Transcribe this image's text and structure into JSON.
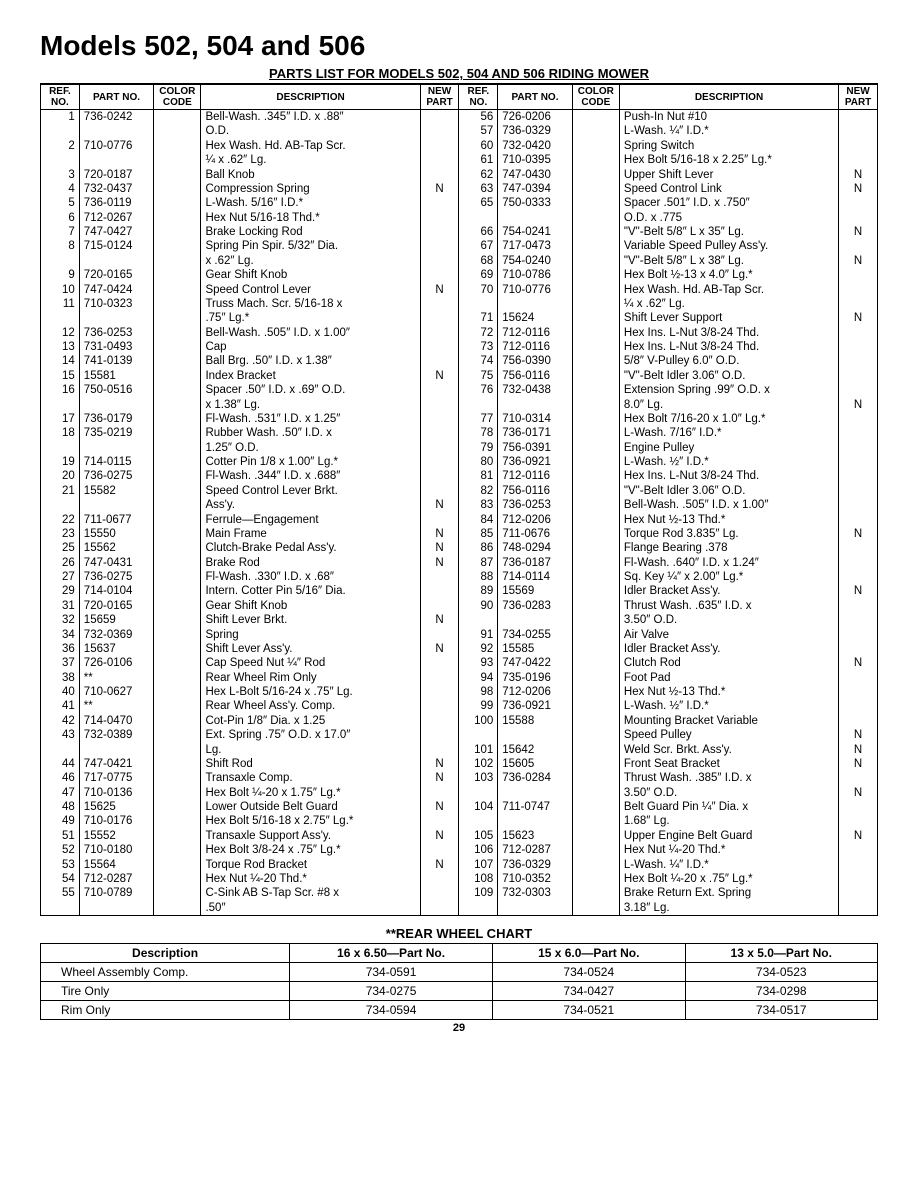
{
  "title": "Models 502, 504 and 506",
  "subtitle": "PARTS LIST FOR MODELS 502, 504 AND 506  RIDING MOWER",
  "headers": {
    "ref": "REF.\nNO.",
    "part": "PART\nNO.",
    "color": "COLOR\nCODE",
    "desc": "DESCRIPTION",
    "new": "NEW\nPART"
  },
  "left": [
    {
      "r": "1",
      "p": "736-0242",
      "d": "Bell-Wash. .345″ I.D. x .88″\nO.D.",
      "n": ""
    },
    {
      "r": "2",
      "p": "710-0776",
      "d": "Hex Wash. Hd. AB-Tap Scr.\n¼ x .62″ Lg.",
      "n": ""
    },
    {
      "r": "3",
      "p": "720-0187",
      "d": "Ball Knob",
      "n": ""
    },
    {
      "r": "4",
      "p": "732-0437",
      "d": "Compression Spring",
      "n": "N"
    },
    {
      "r": "5",
      "p": "736-0119",
      "d": "L-Wash. 5/16″ I.D.*",
      "n": ""
    },
    {
      "r": "6",
      "p": "712-0267",
      "d": "Hex Nut 5/16-18 Thd.*",
      "n": ""
    },
    {
      "r": "7",
      "p": "747-0427",
      "d": "Brake Locking Rod",
      "n": ""
    },
    {
      "r": "8",
      "p": "715-0124",
      "d": "Spring Pin Spir. 5/32″ Dia.\nx .62″ Lg.",
      "n": ""
    },
    {
      "r": "9",
      "p": "720-0165",
      "d": "Gear Shift Knob",
      "n": ""
    },
    {
      "r": "10",
      "p": "747-0424",
      "d": "Speed Control Lever",
      "n": "N"
    },
    {
      "r": "11",
      "p": "710-0323",
      "d": "Truss Mach. Scr. 5/16-18 x\n.75″ Lg.*",
      "n": ""
    },
    {
      "r": "12",
      "p": "736-0253",
      "d": "Bell-Wash. .505″ I.D. x 1.00″",
      "n": ""
    },
    {
      "r": "13",
      "p": "731-0493",
      "d": "Cap",
      "n": ""
    },
    {
      "r": "14",
      "p": "741-0139",
      "d": "Ball Brg. .50″ I.D. x 1.38″",
      "n": ""
    },
    {
      "r": "15",
      "p": "15581",
      "d": "Index Bracket",
      "n": "N"
    },
    {
      "r": "16",
      "p": "750-0516",
      "d": "Spacer .50″ I.D. x .69″ O.D.\nx 1.38″ Lg.",
      "n": ""
    },
    {
      "r": "17",
      "p": "736-0179",
      "d": "Fl-Wash. .531″ I.D. x 1.25″",
      "n": ""
    },
    {
      "r": "18",
      "p": "735-0219",
      "d": "Rubber Wash. .50″ I.D. x\n1.25″ O.D.",
      "n": ""
    },
    {
      "r": "19",
      "p": "714-0115",
      "d": "Cotter Pin 1/8 x 1.00″ Lg.*",
      "n": ""
    },
    {
      "r": "20",
      "p": "736-0275",
      "d": "Fl-Wash. .344″ I.D. x .688″",
      "n": ""
    },
    {
      "r": "21",
      "p": "15582",
      "d": "Speed Control Lever Brkt.\nAss'y.",
      "n": "N"
    },
    {
      "r": "22",
      "p": "711-0677",
      "d": "Ferrule—Engagement",
      "n": ""
    },
    {
      "r": "23",
      "p": "15550",
      "d": "Main Frame",
      "n": "N"
    },
    {
      "r": "25",
      "p": "15562",
      "d": "Clutch-Brake Pedal Ass'y.",
      "n": "N"
    },
    {
      "r": "26",
      "p": "747-0431",
      "d": "Brake Rod",
      "n": "N"
    },
    {
      "r": "27",
      "p": "736-0275",
      "d": "Fl-Wash. .330″ I.D. x .68″",
      "n": ""
    },
    {
      "r": "29",
      "p": "714-0104",
      "d": "Intern. Cotter Pin 5/16″ Dia.",
      "n": ""
    },
    {
      "r": "31",
      "p": "720-0165",
      "d": "Gear Shift Knob",
      "n": ""
    },
    {
      "r": "32",
      "p": "15659",
      "d": "Shift Lever Brkt.",
      "n": "N"
    },
    {
      "r": "34",
      "p": "732-0369",
      "d": "Spring",
      "n": ""
    },
    {
      "r": "36",
      "p": "15637",
      "d": "Shift Lever Ass'y.",
      "n": "N"
    },
    {
      "r": "37",
      "p": "726-0106",
      "d": "Cap Speed Nut ¼″ Rod",
      "n": ""
    },
    {
      "r": "38",
      "p": "**",
      "d": "Rear Wheel Rim Only",
      "n": ""
    },
    {
      "r": "40",
      "p": "710-0627",
      "d": "Hex L-Bolt 5/16-24 x .75″ Lg.",
      "n": ""
    },
    {
      "r": "41",
      "p": "**",
      "d": "Rear Wheel Ass'y. Comp.",
      "n": ""
    },
    {
      "r": "42",
      "p": "714-0470",
      "d": "Cot-Pin 1/8″ Dia. x 1.25",
      "n": ""
    },
    {
      "r": "43",
      "p": "732-0389",
      "d": "Ext. Spring .75″ O.D. x 17.0″\nLg.",
      "n": ""
    },
    {
      "r": "44",
      "p": "747-0421",
      "d": "Shift Rod",
      "n": "N"
    },
    {
      "r": "46",
      "p": "717-0775",
      "d": "Transaxle Comp.",
      "n": "N"
    },
    {
      "r": "47",
      "p": "710-0136",
      "d": "Hex Bolt ¼-20 x 1.75″ Lg.*",
      "n": ""
    },
    {
      "r": "48",
      "p": "15625",
      "d": "Lower Outside Belt Guard",
      "n": "N"
    },
    {
      "r": "49",
      "p": "710-0176",
      "d": "Hex Bolt 5/16-18 x 2.75″ Lg.*",
      "n": ""
    },
    {
      "r": "51",
      "p": "15552",
      "d": "Transaxle Support Ass'y.",
      "n": "N"
    },
    {
      "r": "52",
      "p": "710-0180",
      "d": "Hex Bolt 3/8-24 x .75″ Lg.*",
      "n": ""
    },
    {
      "r": "53",
      "p": "15564",
      "d": "Torque Rod Bracket",
      "n": "N"
    },
    {
      "r": "54",
      "p": "712-0287",
      "d": "Hex Nut ¼-20 Thd.*",
      "n": ""
    },
    {
      "r": "55",
      "p": "710-0789",
      "d": "C-Sink AB S-Tap Scr. #8 x\n.50″",
      "n": ""
    }
  ],
  "right": [
    {
      "r": "56",
      "p": "726-0206",
      "d": "Push-In Nut #10",
      "n": ""
    },
    {
      "r": "57",
      "p": "736-0329",
      "d": "L-Wash. ¼″ I.D.*",
      "n": ""
    },
    {
      "r": "60",
      "p": "732-0420",
      "d": "Spring Switch",
      "n": ""
    },
    {
      "r": "61",
      "p": "710-0395",
      "d": "Hex Bolt 5/16-18 x 2.25″ Lg.*",
      "n": ""
    },
    {
      "r": "62",
      "p": "747-0430",
      "d": "Upper Shift Lever",
      "n": "N"
    },
    {
      "r": "63",
      "p": "747-0394",
      "d": "Speed Control Link",
      "n": "N"
    },
    {
      "r": "65",
      "p": "750-0333",
      "d": "Spacer .501″ I.D. x .750″\nO.D. x .775",
      "n": ""
    },
    {
      "r": "66",
      "p": "754-0241",
      "d": "\"V\"-Belt 5/8″ L x 35″ Lg.",
      "n": "N"
    },
    {
      "r": "67",
      "p": "717-0473",
      "d": "Variable Speed Pulley Ass'y.",
      "n": ""
    },
    {
      "r": "68",
      "p": "754-0240",
      "d": "\"V\"-Belt 5/8″ L x 38″ Lg.",
      "n": "N"
    },
    {
      "r": "69",
      "p": "710-0786",
      "d": "Hex Bolt ½-13 x 4.0″ Lg.*",
      "n": ""
    },
    {
      "r": "70",
      "p": "710-0776",
      "d": "Hex Wash. Hd. AB-Tap Scr.\n¼ x .62″ Lg.",
      "n": ""
    },
    {
      "r": "71",
      "p": "15624",
      "d": "Shift Lever Support",
      "n": "N"
    },
    {
      "r": "72",
      "p": "712-0116",
      "d": "Hex Ins. L-Nut 3/8-24 Thd.",
      "n": ""
    },
    {
      "r": "73",
      "p": "712-0116",
      "d": "Hex Ins. L-Nut 3/8-24 Thd.",
      "n": ""
    },
    {
      "r": "74",
      "p": "756-0390",
      "d": "5/8″ V-Pulley 6.0″ O.D.",
      "n": ""
    },
    {
      "r": "75",
      "p": "756-0116",
      "d": "\"V\"-Belt Idler 3.06″ O.D.",
      "n": ""
    },
    {
      "r": "76",
      "p": "732-0438",
      "d": "Extension Spring .99″ O.D. x\n8.0″ Lg.",
      "n": "N"
    },
    {
      "r": "77",
      "p": "710-0314",
      "d": "Hex Bolt 7/16-20 x 1.0″ Lg.*",
      "n": ""
    },
    {
      "r": "78",
      "p": "736-0171",
      "d": "L-Wash. 7/16″ I.D.*",
      "n": ""
    },
    {
      "r": "79",
      "p": "756-0391",
      "d": "Engine Pulley",
      "n": ""
    },
    {
      "r": "80",
      "p": "736-0921",
      "d": "L-Wash. ½″ I.D.*",
      "n": ""
    },
    {
      "r": "81",
      "p": "712-0116",
      "d": "Hex Ins. L-Nut 3/8-24 Thd.",
      "n": ""
    },
    {
      "r": "82",
      "p": "756-0116",
      "d": "\"V\"-Belt Idler 3.06″ O.D.",
      "n": ""
    },
    {
      "r": "83",
      "p": "736-0253",
      "d": "Bell-Wash. .505″ I.D. x 1.00″",
      "n": ""
    },
    {
      "r": "84",
      "p": "712-0206",
      "d": "Hex Nut ½-13 Thd.*",
      "n": ""
    },
    {
      "r": "85",
      "p": "711-0676",
      "d": "Torque Rod 3.835″ Lg.",
      "n": "N"
    },
    {
      "r": "86",
      "p": "748-0294",
      "d": "Flange Bearing .378",
      "n": ""
    },
    {
      "r": "87",
      "p": "736-0187",
      "d": "Fl-Wash. .640″ I.D. x 1.24″",
      "n": ""
    },
    {
      "r": "88",
      "p": "714-0114",
      "d": "Sq. Key ¼″ x 2.00″ Lg.*",
      "n": ""
    },
    {
      "r": "89",
      "p": "15569",
      "d": "Idler Bracket Ass'y.",
      "n": "N"
    },
    {
      "r": "90",
      "p": "736-0283",
      "d": "Thrust Wash. .635″ I.D. x\n3.50″ O.D.",
      "n": ""
    },
    {
      "r": "91",
      "p": "734-0255",
      "d": "Air Valve",
      "n": ""
    },
    {
      "r": "92",
      "p": "15585",
      "d": "Idler Bracket Ass'y.",
      "n": ""
    },
    {
      "r": "93",
      "p": "747-0422",
      "d": "Clutch Rod",
      "n": "N"
    },
    {
      "r": "94",
      "p": "735-0196",
      "d": "Foot Pad",
      "n": ""
    },
    {
      "r": "98",
      "p": "712-0206",
      "d": "Hex Nut ½-13 Thd.*",
      "n": ""
    },
    {
      "r": "99",
      "p": "736-0921",
      "d": "L-Wash. ½″ I.D.*",
      "n": ""
    },
    {
      "r": "100",
      "p": "15588",
      "d": "Mounting Bracket Variable\nSpeed Pulley",
      "n": "N"
    },
    {
      "r": "101",
      "p": "15642",
      "d": "Weld Scr. Brkt. Ass'y.",
      "n": "N"
    },
    {
      "r": "102",
      "p": "15605",
      "d": "Front Seat Bracket",
      "n": "N"
    },
    {
      "r": "103",
      "p": "736-0284",
      "d": "Thrust Wash. .385″ I.D. x\n3.50″ O.D.",
      "n": "N"
    },
    {
      "r": "104",
      "p": "711-0747",
      "d": "Belt Guard Pin ¼″ Dia. x\n1.68″ Lg.",
      "n": ""
    },
    {
      "r": "105",
      "p": "15623",
      "d": "Upper Engine Belt Guard",
      "n": "N"
    },
    {
      "r": "106",
      "p": "712-0287",
      "d": "Hex Nut ¼-20 Thd.*",
      "n": ""
    },
    {
      "r": "107",
      "p": "736-0329",
      "d": "L-Wash. ¼″ I.D.*",
      "n": ""
    },
    {
      "r": "108",
      "p": "710-0352",
      "d": "Hex Bolt ¼-20 x .75″ Lg.*",
      "n": ""
    },
    {
      "r": "109",
      "p": "732-0303",
      "d": "Brake Return Ext. Spring\n3.18″ Lg.",
      "n": ""
    }
  ],
  "wheel_title": "**REAR WHEEL CHART",
  "wheel_headers": [
    "Description",
    "16 x 6.50—Part No.",
    "15 x 6.0—Part No.",
    "13 x 5.0—Part No."
  ],
  "wheel_rows": [
    [
      "Wheel Assembly Comp.",
      "734-0591",
      "734-0524",
      "734-0523"
    ],
    [
      "Tire Only",
      "734-0275",
      "734-0427",
      "734-0298"
    ],
    [
      "Rim Only",
      "734-0594",
      "734-0521",
      "734-0517"
    ]
  ],
  "page_num": "29"
}
